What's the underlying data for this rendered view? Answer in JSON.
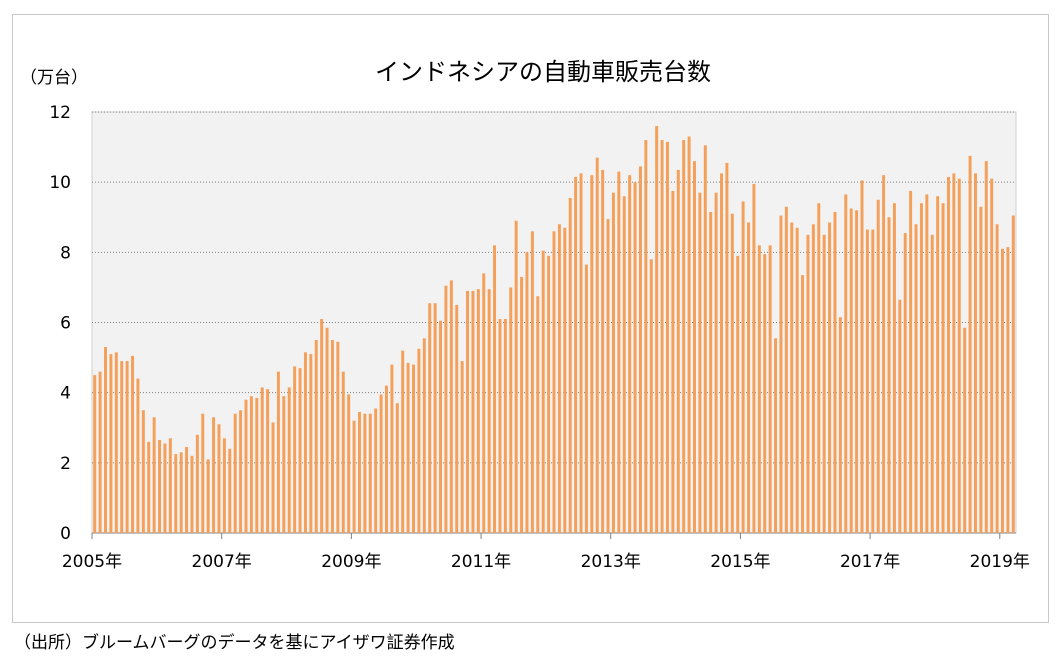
{
  "chart_data": {
    "type": "bar",
    "title": "インドネシアの自動車販売台数",
    "ylabel": "（万台）",
    "xlabel": "",
    "ylim": [
      0,
      12
    ],
    "yticks": [
      "0",
      "2",
      "4",
      "6",
      "8",
      "10",
      "12"
    ],
    "x_tick_labels": [
      "2005年",
      "2007年",
      "2009年",
      "2011年",
      "2013年",
      "2015年",
      "2017年",
      "2019年"
    ],
    "start": "2005-01",
    "grid": true,
    "bar_color": "#F4A05A",
    "plot_background": "#F2F2F2",
    "values": [
      4.5,
      4.6,
      5.3,
      5.1,
      5.15,
      4.9,
      4.9,
      5.05,
      4.4,
      3.5,
      2.6,
      3.3,
      2.65,
      2.55,
      2.7,
      2.25,
      2.3,
      2.45,
      2.2,
      2.8,
      3.4,
      2.1,
      3.3,
      3.1,
      2.7,
      2.4,
      3.4,
      3.5,
      3.8,
      3.9,
      3.85,
      4.15,
      4.1,
      3.15,
      4.6,
      3.9,
      4.15,
      4.75,
      4.7,
      5.15,
      5.1,
      5.5,
      6.1,
      5.85,
      5.5,
      5.45,
      4.6,
      3.95,
      3.2,
      3.45,
      3.4,
      3.4,
      3.55,
      3.95,
      4.2,
      4.8,
      3.7,
      5.2,
      4.85,
      4.8,
      5.25,
      5.55,
      6.55,
      6.55,
      6.05,
      7.05,
      7.2,
      6.5,
      4.9,
      6.9,
      6.9,
      6.95,
      7.4,
      6.95,
      8.2,
      6.1,
      6.1,
      7.0,
      8.9,
      7.3,
      8.0,
      8.6,
      6.75,
      8.05,
      7.9,
      8.6,
      8.8,
      8.7,
      9.55,
      10.15,
      10.25,
      7.65,
      10.2,
      10.7,
      10.35,
      8.95,
      9.7,
      10.3,
      9.6,
      10.2,
      10.0,
      10.45,
      11.2,
      7.8,
      11.6,
      11.2,
      11.15,
      9.75,
      10.35,
      11.2,
      11.3,
      10.6,
      9.7,
      11.05,
      9.15,
      9.7,
      10.25,
      10.55,
      9.1,
      7.9,
      9.45,
      8.85,
      9.95,
      8.2,
      7.95,
      8.2,
      5.55,
      9.05,
      9.3,
      8.85,
      8.7,
      7.35,
      8.5,
      8.8,
      9.4,
      8.5,
      8.85,
      9.15,
      6.15,
      9.65,
      9.25,
      9.2,
      10.05,
      8.65,
      8.65,
      9.5,
      10.2,
      9.0,
      9.4,
      6.65,
      8.55,
      9.75,
      8.8,
      9.4,
      9.65,
      8.5,
      9.6,
      9.4,
      10.15,
      10.25,
      10.1,
      5.85,
      10.75,
      10.25,
      9.3,
      10.6,
      10.1,
      8.8,
      8.1,
      8.15,
      9.05
    ]
  },
  "source_note": "（出所）ブルームバーグのデータを基にアイザワ証券作成"
}
